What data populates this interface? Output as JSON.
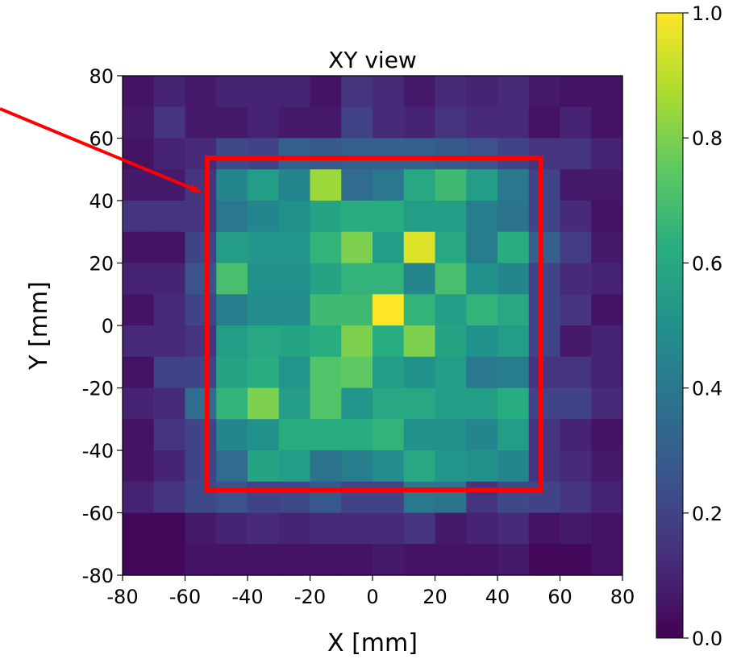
{
  "chart_data": {
    "type": "heatmap",
    "title": "XY view",
    "xlabel": "X [mm]",
    "ylabel": "Y [mm]",
    "xlim": [
      -80,
      80
    ],
    "ylim": [
      -80,
      80
    ],
    "x_ticks": [
      "-80",
      "-60",
      "-40",
      "-20",
      "0",
      "20",
      "40",
      "60",
      "80"
    ],
    "y_ticks": [
      "80",
      "60",
      "40",
      "20",
      "0",
      "-20",
      "-40",
      "-60",
      "-80"
    ],
    "bin_size_mm": 10,
    "colormap": "viridis",
    "colorbar": {
      "range": [
        0.0,
        1.0
      ],
      "ticks": [
        "1.0",
        "0.8",
        "0.6",
        "0.4",
        "0.2",
        "0.0"
      ]
    },
    "grid": false,
    "annotations": {
      "rectangle": {
        "x_range": [
          -53,
          54
        ],
        "y_range": [
          -53,
          53
        ],
        "color": "#ff0000"
      },
      "arrow_color": "#ff0000"
    },
    "rows_top_to_bottom": [
      [
        0.05,
        0.1,
        0.07,
        0.1,
        0.1,
        0.1,
        0.05,
        0.15,
        0.12,
        0.07,
        0.12,
        0.1,
        0.12,
        0.07,
        0.05,
        0.05
      ],
      [
        0.07,
        0.15,
        0.07,
        0.07,
        0.1,
        0.07,
        0.07,
        0.2,
        0.12,
        0.1,
        0.15,
        0.12,
        0.12,
        0.05,
        0.1,
        0.05
      ],
      [
        0.05,
        0.1,
        0.12,
        0.22,
        0.2,
        0.3,
        0.28,
        0.3,
        0.3,
        0.3,
        0.28,
        0.25,
        0.2,
        0.15,
        0.15,
        0.1
      ],
      [
        0.07,
        0.07,
        0.15,
        0.45,
        0.55,
        0.45,
        0.85,
        0.35,
        0.4,
        0.6,
        0.68,
        0.55,
        0.4,
        0.2,
        0.07,
        0.07
      ],
      [
        0.15,
        0.15,
        0.15,
        0.4,
        0.45,
        0.5,
        0.58,
        0.62,
        0.62,
        0.55,
        0.55,
        0.42,
        0.38,
        0.2,
        0.12,
        0.05
      ],
      [
        0.05,
        0.05,
        0.2,
        0.55,
        0.52,
        0.52,
        0.65,
        0.8,
        0.55,
        0.95,
        0.6,
        0.42,
        0.62,
        0.3,
        0.18,
        0.07
      ],
      [
        0.1,
        0.1,
        0.25,
        0.7,
        0.5,
        0.5,
        0.58,
        0.65,
        0.65,
        0.45,
        0.7,
        0.5,
        0.45,
        0.2,
        0.12,
        0.1
      ],
      [
        0.05,
        0.12,
        0.2,
        0.42,
        0.48,
        0.48,
        0.68,
        0.68,
        1.0,
        0.65,
        0.55,
        0.65,
        0.6,
        0.2,
        0.15,
        0.05
      ],
      [
        0.12,
        0.12,
        0.15,
        0.55,
        0.6,
        0.58,
        0.62,
        0.8,
        0.62,
        0.8,
        0.58,
        0.5,
        0.55,
        0.2,
        0.07,
        0.1
      ],
      [
        0.05,
        0.2,
        0.2,
        0.58,
        0.62,
        0.52,
        0.72,
        0.75,
        0.55,
        0.5,
        0.55,
        0.4,
        0.42,
        0.15,
        0.15,
        0.1
      ],
      [
        0.1,
        0.12,
        0.35,
        0.65,
        0.8,
        0.55,
        0.72,
        0.52,
        0.6,
        0.6,
        0.55,
        0.55,
        0.62,
        0.2,
        0.2,
        0.12
      ],
      [
        0.05,
        0.15,
        0.2,
        0.45,
        0.5,
        0.62,
        0.62,
        0.62,
        0.65,
        0.5,
        0.5,
        0.45,
        0.55,
        0.15,
        0.1,
        0.05
      ],
      [
        0.05,
        0.1,
        0.2,
        0.35,
        0.58,
        0.55,
        0.38,
        0.42,
        0.48,
        0.6,
        0.52,
        0.5,
        0.45,
        0.15,
        0.12,
        0.07
      ],
      [
        0.1,
        0.15,
        0.22,
        0.25,
        0.2,
        0.22,
        0.28,
        0.2,
        0.2,
        0.4,
        0.38,
        0.15,
        0.22,
        0.2,
        0.15,
        0.1
      ],
      [
        0.02,
        0.02,
        0.07,
        0.1,
        0.12,
        0.1,
        0.12,
        0.12,
        0.12,
        0.15,
        0.07,
        0.1,
        0.12,
        0.05,
        0.07,
        0.05
      ],
      [
        0.02,
        0.02,
        0.05,
        0.05,
        0.05,
        0.05,
        0.05,
        0.05,
        0.07,
        0.05,
        0.05,
        0.05,
        0.07,
        0.02,
        0.02,
        0.05
      ]
    ]
  }
}
